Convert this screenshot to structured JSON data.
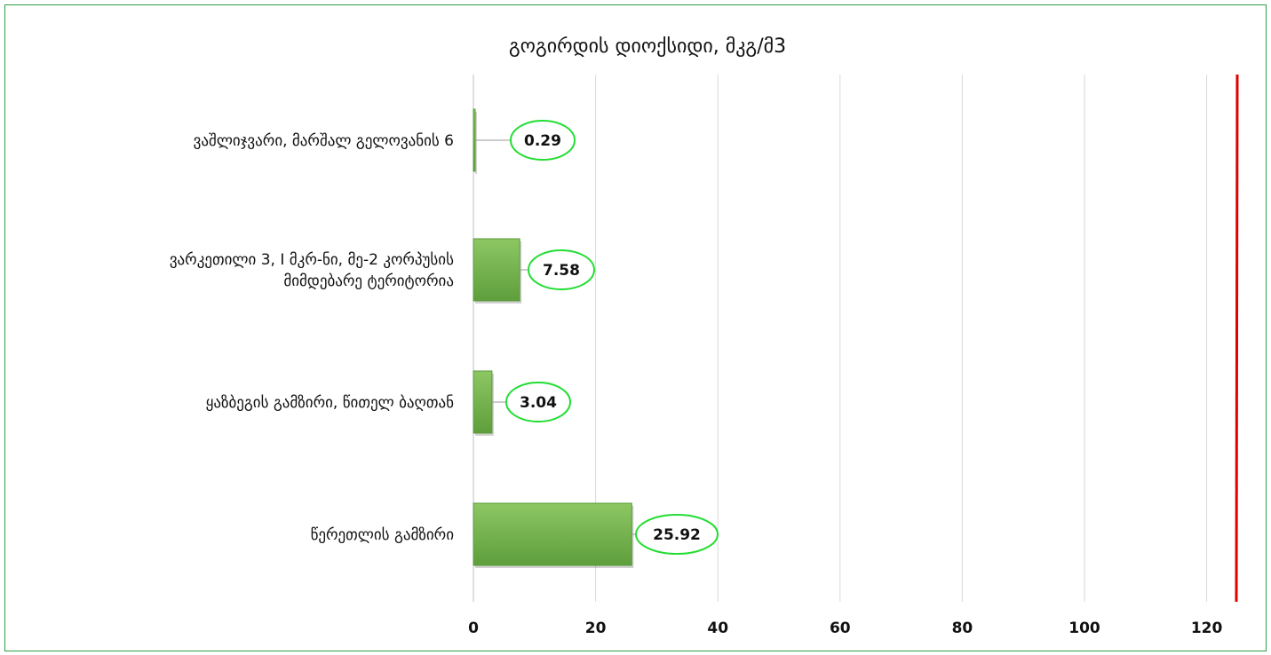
{
  "chart_data": {
    "type": "bar",
    "orientation": "horizontal",
    "title": "გოგირდის დიოქსიდი, მკგ/მ3",
    "categories": [
      [
        "ვაშლიჯვარი, მარშალ გელოვანის 6"
      ],
      [
        "ვარკეთილი 3, I მკრ-ნი, მე-2 კორპუსის",
        "მიმდებარე ტერიტორია"
      ],
      [
        "ყაზბეგის გამზირი, წითელ ბაღთან"
      ],
      [
        "წერეთლის გამზირი"
      ]
    ],
    "values": [
      0.29,
      7.58,
      3.04,
      25.92
    ],
    "data_labels": [
      "0.29",
      "7.58",
      "3.04",
      "25.92"
    ],
    "xlim": [
      0,
      125
    ],
    "ticks": [
      "0",
      "20",
      "40",
      "60",
      "80",
      "100",
      "120"
    ],
    "tick_values": [
      0,
      20,
      40,
      60,
      80,
      100,
      120
    ],
    "reference_line": {
      "value": 125,
      "color": "#e00000"
    },
    "grid": "vertical",
    "legend": "none",
    "colors": {
      "bar": "#70ad47",
      "bar_dark": "#5a9a3a",
      "label_border": "#22dd33",
      "gridline": "#d9d9d9",
      "frame": "#2ea043"
    }
  }
}
